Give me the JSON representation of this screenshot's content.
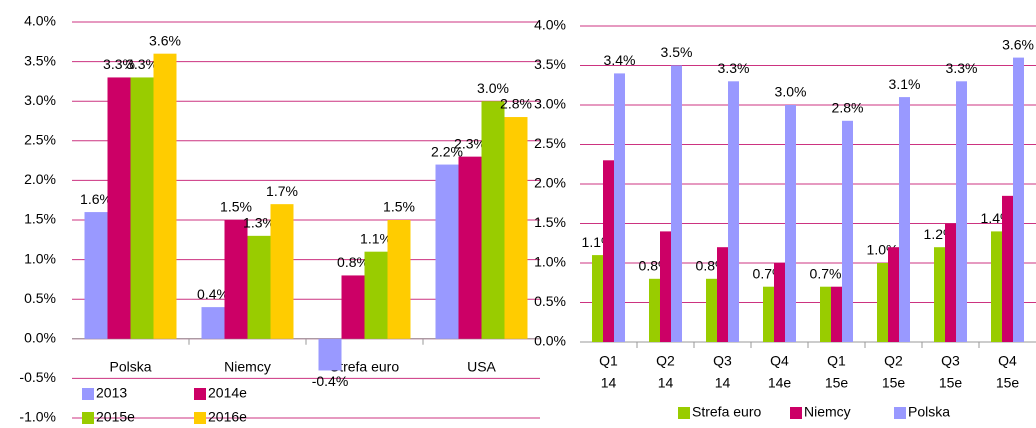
{
  "chart_data": [
    {
      "type": "bar",
      "categories": [
        "Polska",
        "Niemcy",
        "Strefa euro",
        "USA"
      ],
      "series": [
        {
          "name": "2013",
          "color": "#9999ff",
          "values": [
            1.6,
            0.4,
            -0.4,
            2.2
          ],
          "value_labels": [
            "1.6%",
            "0.4%",
            "-0.4%",
            "2.2%"
          ]
        },
        {
          "name": "2014e",
          "color": "#cc0066",
          "values": [
            3.3,
            1.5,
            0.8,
            2.3
          ],
          "value_labels": [
            "3.3%",
            "1.5%",
            "0.8%",
            "2.3%"
          ]
        },
        {
          "name": "2015e",
          "color": "#99cc00",
          "values": [
            3.3,
            1.3,
            1.1,
            3.0
          ],
          "value_labels": [
            "3.3%",
            "1.3%",
            "1.1%",
            "3.0%"
          ]
        },
        {
          "name": "2016e",
          "color": "#ffcc00",
          "values": [
            3.6,
            1.7,
            1.5,
            2.8
          ],
          "value_labels": [
            "3.6%",
            "1.7%",
            "1.5%",
            "2.8%"
          ]
        }
      ],
      "ylim": [
        -1.0,
        4.0
      ],
      "yticks": [
        {
          "value": -1.0,
          "label": "-1.0%"
        },
        {
          "value": -0.5,
          "label": "-0.5%"
        },
        {
          "value": 0.0,
          "label": "0.0%"
        },
        {
          "value": 0.5,
          "label": "0.5%"
        },
        {
          "value": 1.0,
          "label": "1.0%"
        },
        {
          "value": 1.5,
          "label": "1.5%"
        },
        {
          "value": 2.0,
          "label": "2.0%"
        },
        {
          "value": 2.5,
          "label": "2.5%"
        },
        {
          "value": 3.0,
          "label": "3.0%"
        },
        {
          "value": 3.5,
          "label": "3.5%"
        },
        {
          "value": 4.0,
          "label": "4.0%"
        }
      ],
      "grid": true
    },
    {
      "type": "bar",
      "categories": [
        [
          "Q1",
          "14"
        ],
        [
          "Q2",
          "14"
        ],
        [
          "Q3",
          "14"
        ],
        [
          "Q4",
          "14e"
        ],
        [
          "Q1",
          "15e"
        ],
        [
          "Q2",
          "15e"
        ],
        [
          "Q3",
          "15e"
        ],
        [
          "Q4",
          "15e"
        ]
      ],
      "series": [
        {
          "name": "Strefa euro",
          "color": "#99cc00",
          "values": [
            1.1,
            0.8,
            0.8,
            0.7,
            0.7,
            1.0,
            1.2,
            1.4
          ],
          "value_labels": [
            "1.1%",
            "0.8%",
            "0.8%",
            "0.7%",
            "0.7%",
            "1.0%",
            "1.2%",
            "1.4%"
          ]
        },
        {
          "name": "Niemcy",
          "color": "#cc0066",
          "values": [
            2.3,
            1.4,
            1.2,
            1.0,
            0.7,
            1.2,
            1.5,
            1.85
          ]
        },
        {
          "name": "Polska",
          "color": "#9999ff",
          "values": [
            3.4,
            3.5,
            3.3,
            3.0,
            2.8,
            3.1,
            3.3,
            3.6
          ],
          "value_labels": [
            "3.4%",
            "3.5%",
            "3.3%",
            "3.0%",
            "2.8%",
            "3.1%",
            "3.3%",
            "3.6%"
          ]
        }
      ],
      "ylim": [
        0.0,
        4.0
      ],
      "yticks": [
        {
          "value": 0.0,
          "label": "0.0%"
        },
        {
          "value": 0.5,
          "label": "0.5%"
        },
        {
          "value": 1.0,
          "label": "1.0%"
        },
        {
          "value": 1.5,
          "label": "1.5%"
        },
        {
          "value": 2.0,
          "label": "2.0%"
        },
        {
          "value": 2.5,
          "label": "2.5%"
        },
        {
          "value": 3.0,
          "label": "3.0%"
        },
        {
          "value": 3.5,
          "label": "3.5%"
        },
        {
          "value": 4.0,
          "label": "4.0%"
        }
      ],
      "grid": true
    }
  ]
}
